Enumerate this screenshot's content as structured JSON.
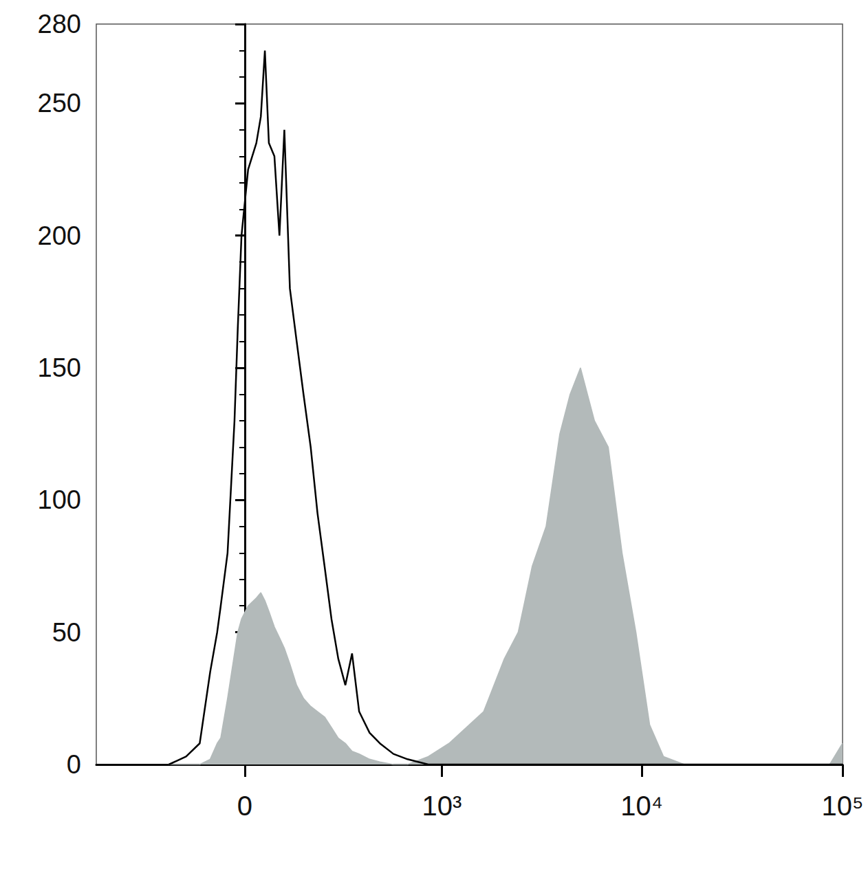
{
  "chart_data": {
    "type": "histogram",
    "x": [
      -208,
      -153,
      -114,
      -86,
      -68,
      -59,
      -42,
      -25,
      -17,
      -8,
      8,
      28,
      39,
      49,
      59,
      73,
      86,
      99,
      114,
      133,
      153,
      175,
      197,
      221,
      246,
      272,
      301,
      330,
      363,
      416,
      474,
      561,
      665,
      852,
      1087,
      1625,
      2064,
      2420,
      2845,
      3335,
      3905,
      4395,
      4950,
      5810,
      6810,
      7980,
      9350,
      10950,
      12840,
      16300,
      86300,
      100000
    ],
    "series": [
      {
        "type": "area",
        "color": "#b3baba",
        "values": [
          0,
          0,
          0,
          2,
          8,
          10,
          25,
          42,
          50,
          55,
          60,
          63,
          65,
          62,
          58,
          52,
          48,
          44,
          38,
          30,
          25,
          22,
          20,
          18,
          14,
          10,
          8,
          5,
          4,
          2,
          1,
          0,
          0,
          3,
          8,
          20,
          40,
          50,
          75,
          90,
          125,
          140,
          150,
          130,
          120,
          80,
          50,
          15,
          3,
          0,
          0,
          8
        ]
      },
      {
        "type": "line",
        "color": "#000000",
        "values": [
          0,
          3,
          8,
          35,
          50,
          60,
          80,
          130,
          165,
          200,
          225,
          235,
          245,
          270,
          235,
          230,
          200,
          240,
          180,
          160,
          140,
          120,
          95,
          75,
          55,
          40,
          30,
          42,
          20,
          12,
          8,
          4,
          2,
          0,
          0,
          0,
          0,
          0,
          0,
          0,
          0,
          0,
          0,
          0,
          0,
          0,
          0,
          0,
          0,
          0,
          0,
          0
        ]
      }
    ],
    "xlim": [
      -560,
      100000
    ],
    "xticks": [
      0,
      {
        "value": 1000,
        "label": "10³"
      },
      {
        "value": 10000,
        "label": "10⁴"
      },
      {
        "value": 100000,
        "label": "10⁵"
      }
    ],
    "ylim": [
      0,
      280
    ],
    "yticks": [
      0,
      50,
      100,
      150,
      200,
      250
    ],
    "grid": false
  }
}
